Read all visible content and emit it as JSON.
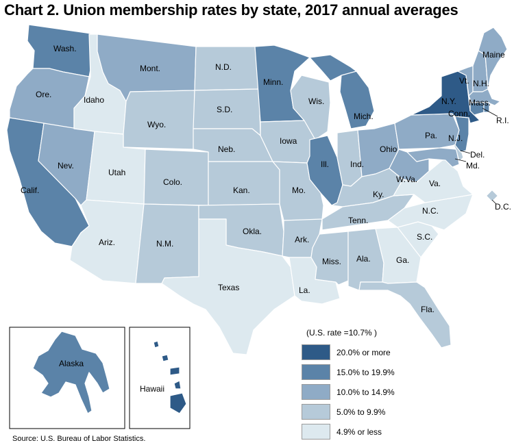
{
  "title": "Chart 2. Union membership rates by state, 2017 annual averages",
  "colors": {
    "c20": "#2e5a87",
    "c15": "#5b83a8",
    "c10": "#8fabc6",
    "c5": "#b6cad9",
    "c0": "#dde9ef"
  },
  "legend": {
    "title": "(U.S. rate =10.7% )",
    "items": [
      {
        "label": "20.0% or more",
        "color": "#2e5a87"
      },
      {
        "label": "15.0% to 19.9%",
        "color": "#5b83a8"
      },
      {
        "label": "10.0% to 14.9%",
        "color": "#8fabc6"
      },
      {
        "label": "5.0% to 9.9%",
        "color": "#b6cad9"
      },
      {
        "label": "4.9% or less",
        "color": "#dde9ef"
      }
    ]
  },
  "source": "Source: U.S. Bureau of Labor Statistics.",
  "states": [
    {
      "id": "wa",
      "label": "Wash.",
      "tier": "15.0% to 19.9%"
    },
    {
      "id": "or",
      "label": "Ore.",
      "tier": "10.0% to 14.9%"
    },
    {
      "id": "ca",
      "label": "Calif.",
      "tier": "15.0% to 19.9%"
    },
    {
      "id": "nv",
      "label": "Nev.",
      "tier": "10.0% to 14.9%"
    },
    {
      "id": "id",
      "label": "Idaho",
      "tier": "4.9% or less"
    },
    {
      "id": "mt",
      "label": "Mont.",
      "tier": "10.0% to 14.9%"
    },
    {
      "id": "wy",
      "label": "Wyo.",
      "tier": "5.0% to 9.9%"
    },
    {
      "id": "ut",
      "label": "Utah",
      "tier": "4.9% or less"
    },
    {
      "id": "az",
      "label": "Ariz.",
      "tier": "4.9% or less"
    },
    {
      "id": "co",
      "label": "Colo.",
      "tier": "5.0% to 9.9%"
    },
    {
      "id": "nm",
      "label": "N.M.",
      "tier": "5.0% to 9.9%"
    },
    {
      "id": "nd",
      "label": "N.D.",
      "tier": "5.0% to 9.9%"
    },
    {
      "id": "sd",
      "label": "S.D.",
      "tier": "5.0% to 9.9%"
    },
    {
      "id": "ne",
      "label": "Neb.",
      "tier": "5.0% to 9.9%"
    },
    {
      "id": "ks",
      "label": "Kan.",
      "tier": "5.0% to 9.9%"
    },
    {
      "id": "ok",
      "label": "Okla.",
      "tier": "5.0% to 9.9%"
    },
    {
      "id": "tx",
      "label": "Texas",
      "tier": "4.9% or less"
    },
    {
      "id": "mn",
      "label": "Minn.",
      "tier": "15.0% to 19.9%"
    },
    {
      "id": "ia",
      "label": "Iowa",
      "tier": "5.0% to 9.9%"
    },
    {
      "id": "mo",
      "label": "Mo.",
      "tier": "5.0% to 9.9%"
    },
    {
      "id": "ar",
      "label": "Ark.",
      "tier": "5.0% to 9.9%"
    },
    {
      "id": "la",
      "label": "La.",
      "tier": "4.9% or less"
    },
    {
      "id": "wi",
      "label": "Wis.",
      "tier": "5.0% to 9.9%"
    },
    {
      "id": "il",
      "label": "Ill.",
      "tier": "15.0% to 19.9%"
    },
    {
      "id": "mi",
      "label": "Mich.",
      "tier": "15.0% to 19.9%"
    },
    {
      "id": "in",
      "label": "Ind.",
      "tier": "5.0% to 9.9%"
    },
    {
      "id": "oh",
      "label": "Ohio",
      "tier": "10.0% to 14.9%"
    },
    {
      "id": "ky",
      "label": "Ky.",
      "tier": "5.0% to 9.9%"
    },
    {
      "id": "tn",
      "label": "Tenn.",
      "tier": "5.0% to 9.9%"
    },
    {
      "id": "ms",
      "label": "Miss.",
      "tier": "5.0% to 9.9%"
    },
    {
      "id": "al",
      "label": "Ala.",
      "tier": "5.0% to 9.9%"
    },
    {
      "id": "ga",
      "label": "Ga.",
      "tier": "4.9% or less"
    },
    {
      "id": "fl",
      "label": "Fla.",
      "tier": "5.0% to 9.9%"
    },
    {
      "id": "sc",
      "label": "S.C.",
      "tier": "4.9% or less"
    },
    {
      "id": "nc",
      "label": "N.C.",
      "tier": "4.9% or less"
    },
    {
      "id": "va",
      "label": "Va.",
      "tier": "4.9% or less"
    },
    {
      "id": "wv",
      "label": "W.Va.",
      "tier": "10.0% to 14.9%"
    },
    {
      "id": "pa",
      "label": "Pa.",
      "tier": "10.0% to 14.9%"
    },
    {
      "id": "ny",
      "label": "N.Y.",
      "tier": "20.0% or more"
    },
    {
      "id": "nj",
      "label": "N.J.",
      "tier": "15.0% to 19.9%"
    },
    {
      "id": "de",
      "label": "Del.",
      "tier": "5.0% to 9.9%"
    },
    {
      "id": "md",
      "label": "Md.",
      "tier": "10.0% to 14.9%"
    },
    {
      "id": "dc",
      "label": "D.C.",
      "tier": "5.0% to 9.9%"
    },
    {
      "id": "ct",
      "label": "Conn.",
      "tier": "15.0% to 19.9%"
    },
    {
      "id": "ri",
      "label": "R.I.",
      "tier": "15.0% to 19.9%"
    },
    {
      "id": "ma",
      "label": "Mass.",
      "tier": "10.0% to 14.9%"
    },
    {
      "id": "vt",
      "label": "Vt.",
      "tier": "10.0% to 14.9%"
    },
    {
      "id": "nh",
      "label": "N.H.",
      "tier": "10.0% to 14.9%"
    },
    {
      "id": "me",
      "label": "Maine",
      "tier": "10.0% to 14.9%"
    },
    {
      "id": "ak",
      "label": "Alaska",
      "tier": "15.0% to 19.9%"
    },
    {
      "id": "hi",
      "label": "Hawaii",
      "tier": "20.0% or more"
    }
  ]
}
